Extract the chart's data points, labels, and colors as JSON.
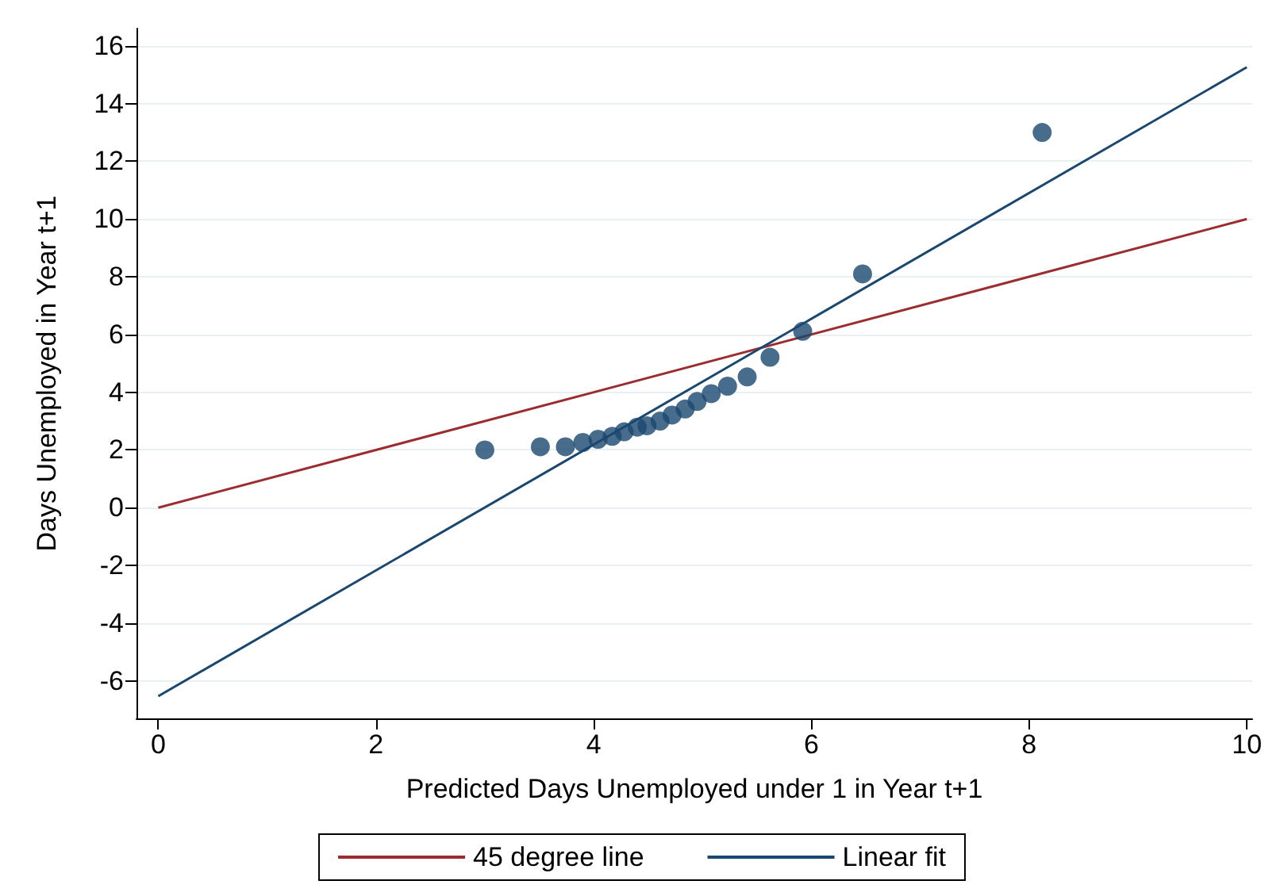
{
  "chart_data": {
    "type": "scatter",
    "xlabel": "Predicted Days Unemployed under 1 in Year t+1",
    "ylabel": "Days Unemployed in Year t+1",
    "xlim": [
      -0.2,
      10.05
    ],
    "xticks": [
      0,
      2,
      4,
      6,
      8,
      10
    ],
    "ylim": [
      -7.3,
      16.6
    ],
    "yticks": [
      -6,
      -4,
      -2,
      0,
      2,
      4,
      6,
      8,
      10,
      12,
      14,
      16
    ],
    "grid": "y",
    "legend": "bottom",
    "series": [
      {
        "marker": "circle",
        "color": "#1a476f",
        "x": [
          3.0,
          3.51,
          3.74,
          3.9,
          4.04,
          4.17,
          4.28,
          4.4,
          4.49,
          4.61,
          4.72,
          4.84,
          4.95,
          5.08,
          5.23,
          5.41,
          5.62,
          5.92,
          6.47,
          8.12
        ],
        "values": [
          2.0,
          2.11,
          2.11,
          2.26,
          2.37,
          2.47,
          2.63,
          2.79,
          2.84,
          3.0,
          3.21,
          3.42,
          3.68,
          3.95,
          4.21,
          4.53,
          5.21,
          6.11,
          8.1,
          13.0
        ]
      },
      {
        "type": "line",
        "name": "45 degree line",
        "color": "#9b2d30",
        "x": [
          0,
          10
        ],
        "values": [
          0,
          10
        ]
      },
      {
        "type": "line",
        "name": "Linear fit",
        "color": "#1a476f",
        "x": [
          0,
          10
        ],
        "values": [
          -6.53,
          15.26
        ]
      }
    ]
  }
}
